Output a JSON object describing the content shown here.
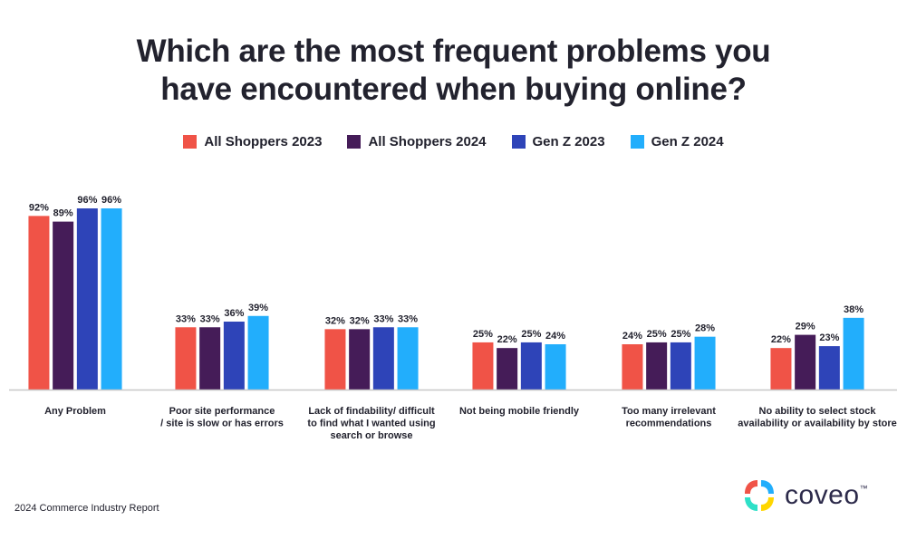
{
  "chart_data": {
    "type": "bar",
    "title": "Which are the most frequent problems you have encountered when buying online?",
    "title_lines": [
      "Which are the most frequent problems you",
      "have encountered when buying online?"
    ],
    "categories": [
      "Any Problem",
      "Poor site performance / site is slow or has errors",
      "Lack of findability/ difficult to find what I wanted using search or browse",
      "Not being mobile friendly",
      "Too many irrelevant recommendations",
      "No ability to select stock availability or availability by store"
    ],
    "category_lines": [
      [
        "Any Problem"
      ],
      [
        "Poor site performance",
        "/ site is slow or has errors"
      ],
      [
        "Lack of findability/ difficult",
        "to find what I wanted using",
        "search or browse"
      ],
      [
        "Not being mobile friendly"
      ],
      [
        "Too many irrelevant",
        "recommendations"
      ],
      [
        "No ability to select stock",
        "availability or availability by store"
      ]
    ],
    "series": [
      {
        "name": "All Shoppers 2023",
        "color": "#f05347",
        "values": [
          92,
          33,
          32,
          25,
          24,
          22
        ]
      },
      {
        "name": "All Shoppers 2024",
        "color": "#451c58",
        "values": [
          89,
          33,
          32,
          22,
          25,
          29
        ]
      },
      {
        "name": "Gen Z 2023",
        "color": "#2e44b8",
        "values": [
          96,
          36,
          33,
          25,
          25,
          23
        ]
      },
      {
        "name": "Gen Z 2024",
        "color": "#22aefc",
        "values": [
          96,
          39,
          33,
          24,
          28,
          38
        ]
      }
    ],
    "value_suffix": "%",
    "ylim": [
      0,
      100
    ],
    "grid": false,
    "legend": "top-center",
    "xlabel": "",
    "ylabel": ""
  },
  "footer": "2024 Commerce Industry Report",
  "logo": {
    "text": "coveo",
    "tm": "™"
  }
}
